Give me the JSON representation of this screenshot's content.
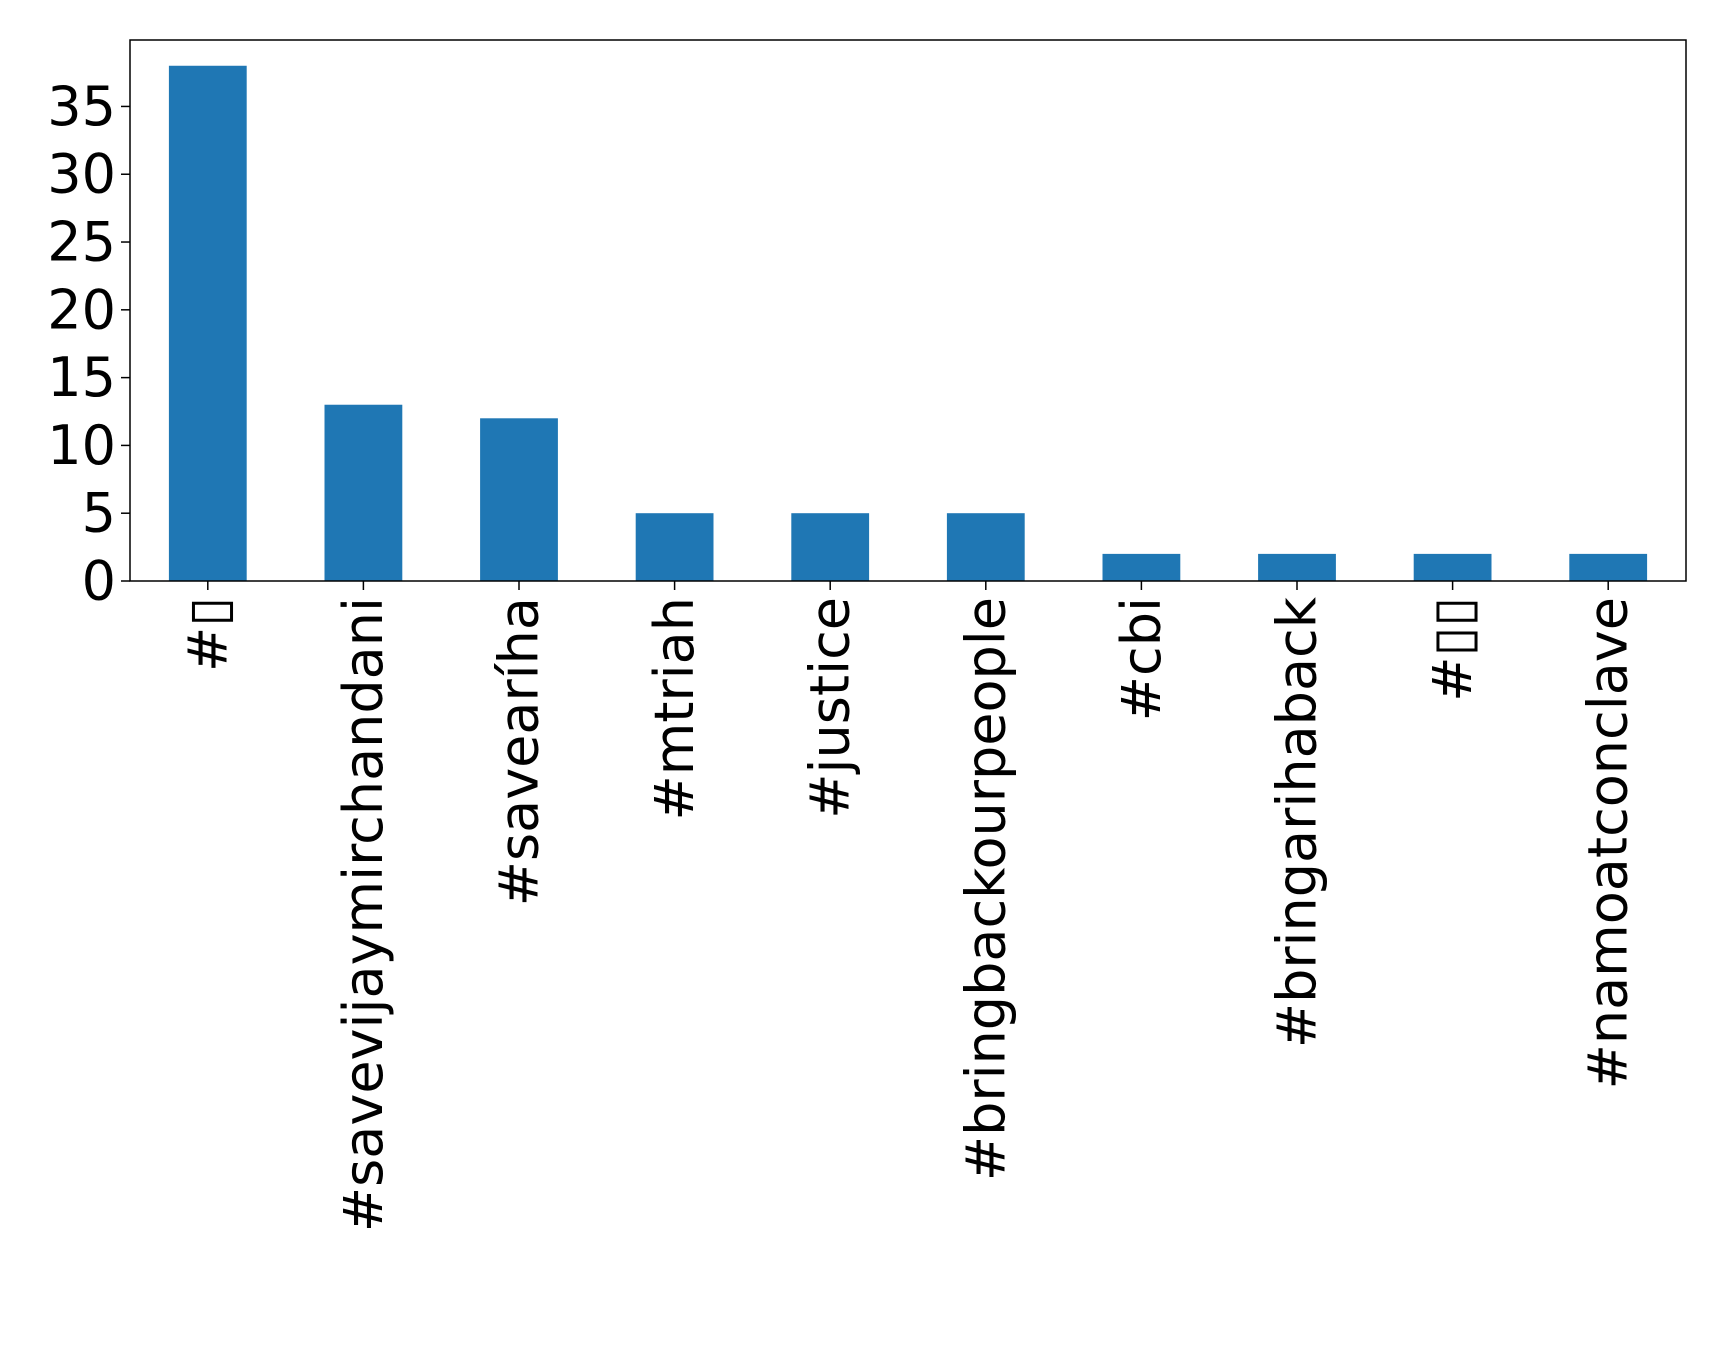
{
  "chart_data": {
    "type": "bar",
    "title": "",
    "xlabel": "",
    "ylabel": "",
    "categories": [
      "#▯",
      "#savevijaymirchandani",
      "#savearíha",
      "#mtriah",
      "#justice",
      "#bringbackourpeople",
      "#cbi",
      "#bringarihaback",
      "#▯▯",
      "#namoatconclave"
    ],
    "values": [
      38,
      13,
      12,
      5,
      5,
      5,
      2,
      2,
      2,
      2
    ],
    "ylim": [
      0,
      39.9
    ],
    "yticks": [
      0,
      5,
      10,
      15,
      20,
      25,
      30,
      35
    ],
    "bar_color": "#1f77b4",
    "grid": false,
    "legend": "none"
  }
}
